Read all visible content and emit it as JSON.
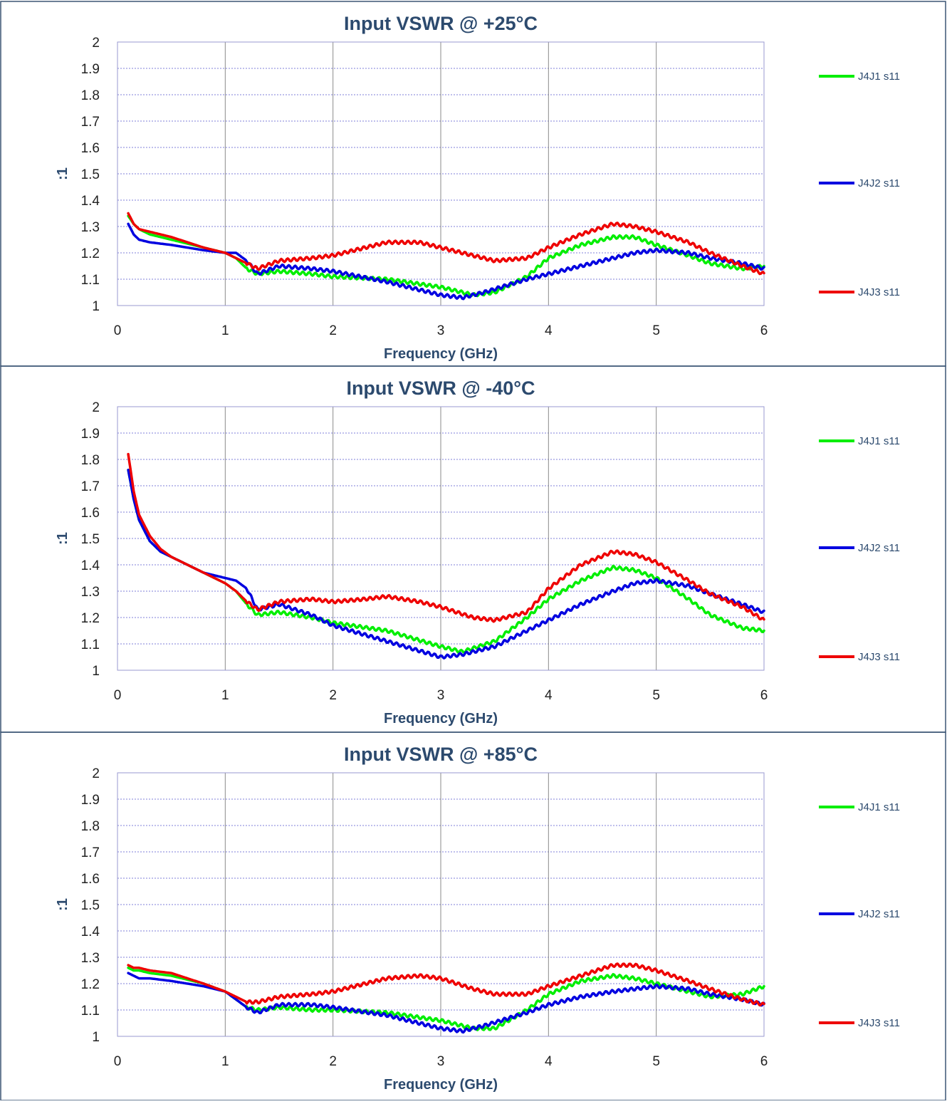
{
  "chart_data": [
    {
      "type": "line",
      "title": "Input VSWR @ +25°C",
      "xlabel": "Frequency (GHz)",
      "ylabel": ":1",
      "xlim": [
        0,
        6
      ],
      "ylim": [
        1,
        2
      ],
      "xticks": [
        "0",
        "1",
        "2",
        "3",
        "4",
        "5",
        "6"
      ],
      "yticks": [
        "1",
        "1.1",
        "1.2",
        "1.3",
        "1.4",
        "1.5",
        "1.6",
        "1.7",
        "1.8",
        "1.9",
        "2"
      ],
      "grid": true,
      "legend_position": "right",
      "series": [
        {
          "name": "J4J1 s11",
          "color": "#00ee00",
          "x": [
            0.1,
            0.15,
            0.2,
            0.3,
            0.5,
            0.8,
            1.0,
            1.1,
            1.2,
            1.3,
            1.5,
            1.8,
            2.0,
            2.5,
            3.0,
            3.3,
            3.5,
            3.8,
            4.0,
            4.3,
            4.6,
            4.8,
            5.0,
            5.3,
            5.5,
            5.8,
            6.0
          ],
          "y": [
            1.34,
            1.31,
            1.29,
            1.27,
            1.25,
            1.22,
            1.2,
            1.18,
            1.14,
            1.12,
            1.13,
            1.12,
            1.11,
            1.1,
            1.07,
            1.04,
            1.05,
            1.11,
            1.18,
            1.23,
            1.26,
            1.26,
            1.23,
            1.19,
            1.16,
            1.14,
            1.15
          ]
        },
        {
          "name": "J4J2 s11",
          "color": "#0000e0",
          "x": [
            0.1,
            0.15,
            0.2,
            0.3,
            0.5,
            0.8,
            1.0,
            1.1,
            1.2,
            1.3,
            1.5,
            1.8,
            2.0,
            2.5,
            3.0,
            3.2,
            3.4,
            3.8,
            4.0,
            4.3,
            4.6,
            4.8,
            5.0,
            5.3,
            5.5,
            5.8,
            6.0
          ],
          "y": [
            1.31,
            1.27,
            1.25,
            1.24,
            1.23,
            1.21,
            1.2,
            1.2,
            1.17,
            1.12,
            1.15,
            1.14,
            1.13,
            1.09,
            1.04,
            1.03,
            1.05,
            1.1,
            1.12,
            1.15,
            1.18,
            1.2,
            1.21,
            1.2,
            1.18,
            1.16,
            1.14
          ]
        },
        {
          "name": "J4J3 s11",
          "color": "#ee0000",
          "x": [
            0.1,
            0.15,
            0.2,
            0.3,
            0.5,
            0.8,
            1.0,
            1.1,
            1.2,
            1.3,
            1.5,
            1.8,
            2.0,
            2.3,
            2.5,
            2.8,
            3.0,
            3.3,
            3.5,
            3.8,
            4.0,
            4.3,
            4.6,
            4.8,
            5.0,
            5.3,
            5.5,
            5.8,
            6.0
          ],
          "y": [
            1.35,
            1.31,
            1.29,
            1.28,
            1.26,
            1.22,
            1.2,
            1.18,
            1.16,
            1.14,
            1.17,
            1.18,
            1.19,
            1.22,
            1.24,
            1.24,
            1.22,
            1.19,
            1.17,
            1.18,
            1.22,
            1.27,
            1.31,
            1.3,
            1.28,
            1.24,
            1.2,
            1.15,
            1.12
          ]
        }
      ]
    },
    {
      "type": "line",
      "title": "Input VSWR @ -40°C",
      "xlabel": "Frequency (GHz)",
      "ylabel": ":1",
      "xlim": [
        0,
        6
      ],
      "ylim": [
        1,
        2
      ],
      "xticks": [
        "0",
        "1",
        "2",
        "3",
        "4",
        "5",
        "6"
      ],
      "yticks": [
        "1",
        "1.1",
        "1.2",
        "1.3",
        "1.4",
        "1.5",
        "1.6",
        "1.7",
        "1.8",
        "1.9",
        "2"
      ],
      "grid": true,
      "legend_position": "right",
      "series": [
        {
          "name": "J4J1 s11",
          "color": "#00ee00",
          "x": [
            0.1,
            0.15,
            0.2,
            0.3,
            0.4,
            0.5,
            0.6,
            0.8,
            1.0,
            1.1,
            1.2,
            1.3,
            1.5,
            1.8,
            2.0,
            2.5,
            3.0,
            3.2,
            3.5,
            3.8,
            4.0,
            4.3,
            4.6,
            4.8,
            5.0,
            5.3,
            5.5,
            5.8,
            6.0
          ],
          "y": [
            1.76,
            1.65,
            1.57,
            1.49,
            1.45,
            1.43,
            1.41,
            1.37,
            1.33,
            1.3,
            1.25,
            1.21,
            1.22,
            1.2,
            1.18,
            1.15,
            1.09,
            1.07,
            1.11,
            1.2,
            1.27,
            1.34,
            1.39,
            1.38,
            1.35,
            1.27,
            1.21,
            1.16,
            1.15
          ]
        },
        {
          "name": "J4J2 s11",
          "color": "#0000e0",
          "x": [
            0.1,
            0.15,
            0.2,
            0.3,
            0.4,
            0.5,
            0.6,
            0.8,
            1.0,
            1.1,
            1.2,
            1.3,
            1.5,
            1.8,
            2.0,
            2.5,
            3.0,
            3.2,
            3.5,
            3.8,
            4.0,
            4.3,
            4.6,
            4.8,
            5.0,
            5.3,
            5.5,
            5.8,
            6.0
          ],
          "y": [
            1.76,
            1.65,
            1.57,
            1.49,
            1.45,
            1.43,
            1.41,
            1.37,
            1.35,
            1.34,
            1.31,
            1.23,
            1.25,
            1.21,
            1.17,
            1.11,
            1.05,
            1.06,
            1.09,
            1.15,
            1.19,
            1.25,
            1.3,
            1.33,
            1.34,
            1.32,
            1.29,
            1.25,
            1.22
          ]
        },
        {
          "name": "J4J3 s11",
          "color": "#ee0000",
          "x": [
            0.1,
            0.15,
            0.2,
            0.3,
            0.4,
            0.5,
            0.6,
            0.8,
            1.0,
            1.1,
            1.2,
            1.3,
            1.5,
            1.8,
            2.0,
            2.3,
            2.5,
            2.8,
            3.0,
            3.3,
            3.5,
            3.8,
            4.0,
            4.3,
            4.6,
            4.8,
            5.0,
            5.3,
            5.5,
            5.8,
            6.0
          ],
          "y": [
            1.82,
            1.68,
            1.59,
            1.51,
            1.46,
            1.43,
            1.41,
            1.37,
            1.33,
            1.3,
            1.26,
            1.23,
            1.26,
            1.27,
            1.26,
            1.27,
            1.28,
            1.26,
            1.24,
            1.2,
            1.19,
            1.22,
            1.31,
            1.4,
            1.45,
            1.44,
            1.41,
            1.34,
            1.29,
            1.24,
            1.19
          ]
        }
      ]
    },
    {
      "type": "line",
      "title": "Input VSWR @ +85°C",
      "xlabel": "Frequency (GHz)",
      "ylabel": ":1",
      "xlim": [
        0,
        6
      ],
      "ylim": [
        1,
        2
      ],
      "xticks": [
        "0",
        "1",
        "2",
        "3",
        "4",
        "5",
        "6"
      ],
      "yticks": [
        "1",
        "1.1",
        "1.2",
        "1.3",
        "1.4",
        "1.5",
        "1.6",
        "1.7",
        "1.8",
        "1.9",
        "2"
      ],
      "grid": true,
      "legend_position": "right",
      "series": [
        {
          "name": "J4J1 s11",
          "color": "#00ee00",
          "x": [
            0.1,
            0.15,
            0.2,
            0.3,
            0.5,
            0.8,
            1.0,
            1.1,
            1.2,
            1.3,
            1.5,
            1.8,
            2.0,
            2.5,
            3.0,
            3.3,
            3.5,
            3.8,
            4.0,
            4.3,
            4.6,
            4.8,
            5.0,
            5.3,
            5.5,
            5.8,
            6.0
          ],
          "y": [
            1.26,
            1.25,
            1.25,
            1.24,
            1.23,
            1.2,
            1.17,
            1.14,
            1.11,
            1.1,
            1.11,
            1.1,
            1.1,
            1.09,
            1.06,
            1.03,
            1.03,
            1.1,
            1.16,
            1.21,
            1.23,
            1.22,
            1.2,
            1.17,
            1.15,
            1.16,
            1.19
          ]
        },
        {
          "name": "J4J2 s11",
          "color": "#0000e0",
          "x": [
            0.1,
            0.15,
            0.2,
            0.3,
            0.5,
            0.8,
            1.0,
            1.1,
            1.2,
            1.3,
            1.5,
            1.8,
            2.0,
            2.5,
            3.0,
            3.2,
            3.4,
            3.8,
            4.0,
            4.3,
            4.6,
            4.8,
            5.0,
            5.3,
            5.5,
            5.8,
            6.0
          ],
          "y": [
            1.24,
            1.23,
            1.22,
            1.22,
            1.21,
            1.19,
            1.17,
            1.14,
            1.11,
            1.09,
            1.12,
            1.12,
            1.11,
            1.08,
            1.03,
            1.02,
            1.04,
            1.09,
            1.12,
            1.15,
            1.17,
            1.18,
            1.19,
            1.18,
            1.16,
            1.14,
            1.12
          ]
        },
        {
          "name": "J4J3 s11",
          "color": "#ee0000",
          "x": [
            0.1,
            0.15,
            0.2,
            0.3,
            0.5,
            0.8,
            1.0,
            1.1,
            1.2,
            1.3,
            1.5,
            1.8,
            2.0,
            2.3,
            2.5,
            2.8,
            3.0,
            3.3,
            3.5,
            3.8,
            4.0,
            4.3,
            4.6,
            4.8,
            5.0,
            5.3,
            5.5,
            5.8,
            6.0
          ],
          "y": [
            1.27,
            1.26,
            1.26,
            1.25,
            1.24,
            1.2,
            1.17,
            1.15,
            1.13,
            1.13,
            1.15,
            1.16,
            1.17,
            1.2,
            1.22,
            1.23,
            1.22,
            1.18,
            1.16,
            1.16,
            1.19,
            1.23,
            1.27,
            1.27,
            1.25,
            1.21,
            1.18,
            1.14,
            1.12
          ]
        }
      ]
    }
  ]
}
